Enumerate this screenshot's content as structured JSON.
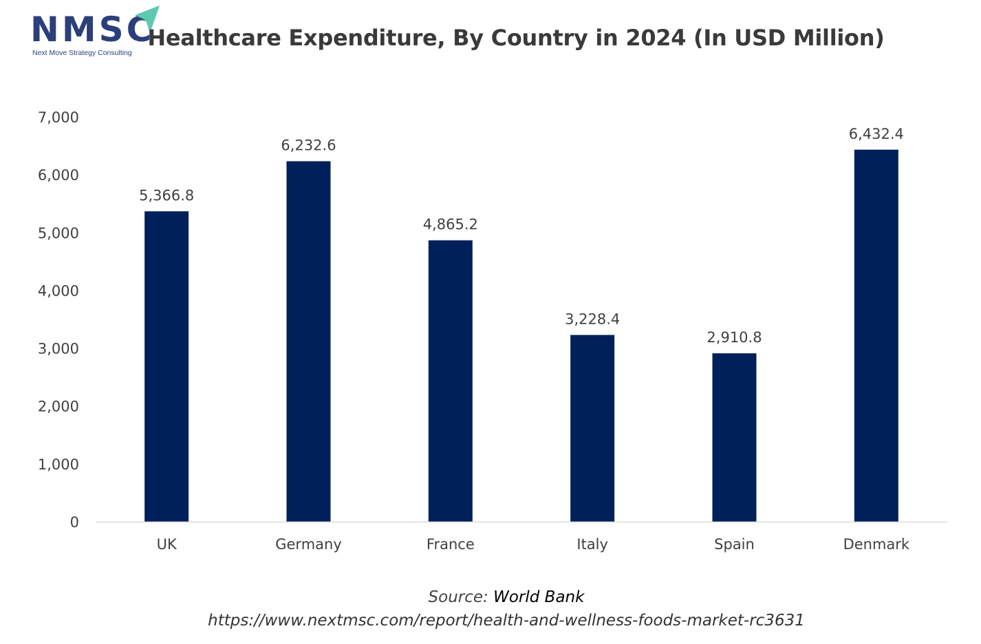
{
  "logo": {
    "letters": "NMSC",
    "tagline": "Next Move Strategy Consulting",
    "icon": "paper-plane-arrow-icon"
  },
  "colors": {
    "bar": "#001f5b",
    "axis": "#d9d9d9",
    "text": "#404040",
    "logo": "#2b3f7a",
    "logo_accent": "#5fc9b0"
  },
  "chart_data": {
    "type": "bar",
    "title": "Healthcare Expenditure, By Country in 2024 (In USD Million)",
    "xlabel": "",
    "ylabel": "",
    "categories": [
      "UK",
      "Germany",
      "France",
      "Italy",
      "Spain",
      "Denmark"
    ],
    "values": [
      5366.8,
      6232.6,
      4865.2,
      3228.4,
      2910.8,
      6432.4
    ],
    "value_labels": [
      "5,366.8",
      "6,232.6",
      "4,865.2",
      "3,228.4",
      "2,910.8",
      "6,432.4"
    ],
    "ylim": [
      0,
      7000
    ],
    "yticks": [
      0,
      1000,
      2000,
      3000,
      4000,
      5000,
      6000,
      7000
    ],
    "ytick_labels": [
      "0",
      "1,000",
      "2,000",
      "3,000",
      "4,000",
      "5,000",
      "6,000",
      "7,000"
    ],
    "grid": false,
    "legend": "none"
  },
  "source": {
    "label": "Source:",
    "value": "World Bank",
    "url": "https://www.nextmsc.com/report/health-and-wellness-foods-market-rc3631"
  }
}
